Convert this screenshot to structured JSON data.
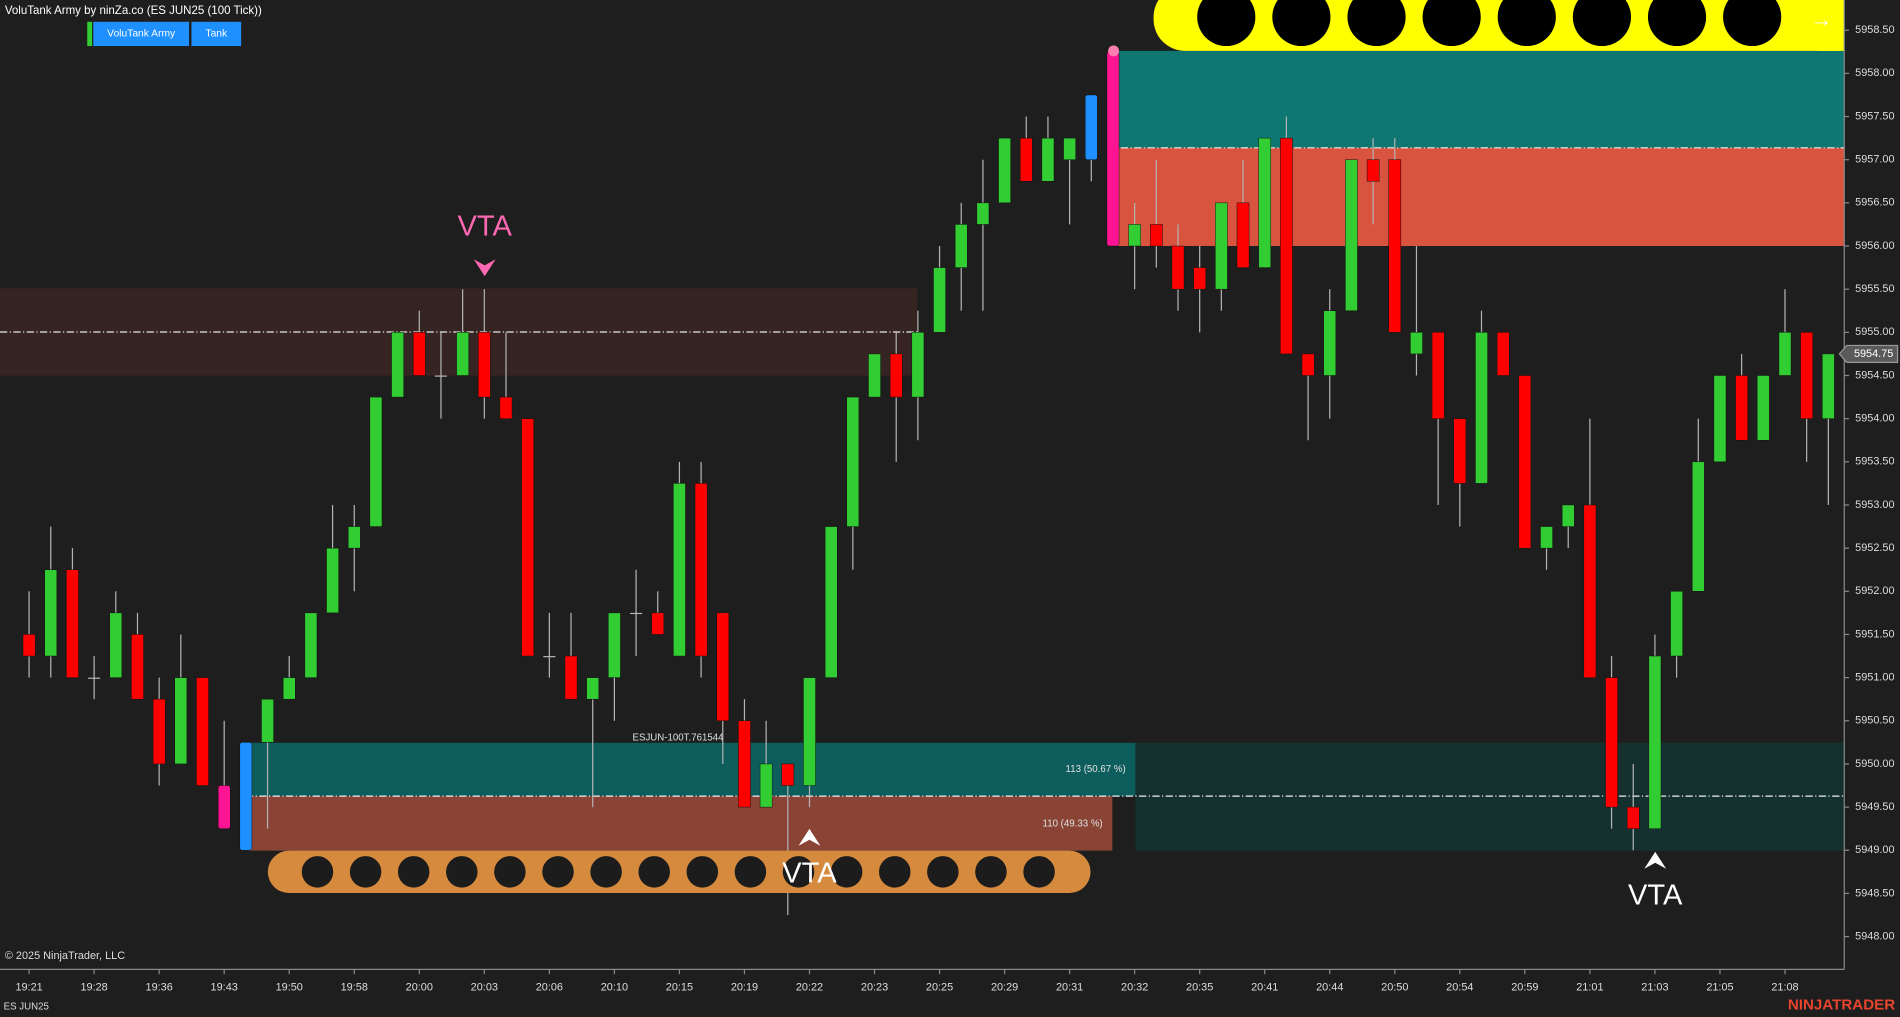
{
  "chart_data": {
    "type": "candlestick",
    "title": "VoluTank Army by ninZa.co (ES JUN25 (100 Tick))",
    "instrument": "ES JUN25",
    "up_color": "#32cd32",
    "down_color": "#ff0000",
    "wick_color": "#b4b4b4",
    "bar_colors": [
      null,
      null,
      null,
      null,
      null,
      null,
      null,
      null,
      null,
      "#ff1493",
      "#1e90ff",
      null,
      null,
      null,
      null,
      null,
      null,
      null,
      null,
      null,
      null,
      null,
      null,
      null,
      null,
      null,
      null,
      null,
      null,
      null,
      null,
      null,
      null,
      null,
      null,
      null,
      null,
      null,
      null,
      null,
      null,
      null,
      null,
      null,
      null,
      null,
      null,
      null,
      null,
      "#1e90ff",
      "#ff1493",
      null,
      null,
      null,
      null,
      null,
      null,
      null,
      null,
      null,
      null,
      null,
      null,
      null,
      null,
      null,
      null,
      null,
      null,
      null,
      null,
      null,
      null,
      null,
      null,
      null,
      null,
      null,
      null,
      null,
      null,
      null,
      null,
      null
    ],
    "categories": [
      "19:21",
      null,
      null,
      "19:28",
      null,
      null,
      "19:36",
      null,
      null,
      "19:43",
      null,
      null,
      "19:50",
      null,
      null,
      "19:58",
      null,
      null,
      "20:00",
      null,
      null,
      "20:03",
      null,
      null,
      "20:06",
      null,
      null,
      "20:10",
      null,
      null,
      "20:15",
      null,
      null,
      "20:19",
      null,
      null,
      "20:22",
      null,
      null,
      "20:23",
      null,
      null,
      "20:25",
      null,
      null,
      "20:29",
      null,
      null,
      "20:31",
      null,
      null,
      "20:32",
      null,
      null,
      "20:35",
      null,
      null,
      "20:41",
      null,
      null,
      "20:44",
      null,
      null,
      "20:50",
      null,
      null,
      "20:54",
      null,
      null,
      "20:59",
      null,
      null,
      "21:01",
      null,
      null,
      "21:03",
      null,
      null,
      "21:05",
      null,
      null,
      "21:08",
      null,
      null
    ],
    "open": [
      5951.5,
      5951.25,
      5952.25,
      5951,
      5951,
      5951.5,
      5950.75,
      5950,
      5951,
      5949.75,
      5949,
      5950.25,
      5950.75,
      5951,
      5951.75,
      5952.5,
      5952.75,
      5954.25,
      5955,
      5954.5,
      5954.5,
      5955,
      5954.25,
      5954,
      5951.25,
      5951.25,
      5950.75,
      5951,
      5951.75,
      5951.75,
      5951.25,
      5953.25,
      5951.75,
      5950.5,
      5949.5,
      5950,
      5949.75,
      5951,
      5952.75,
      5954.25,
      5954.75,
      5954.25,
      5955,
      5955.75,
      5956.25,
      5956.5,
      5957.25,
      5956.75,
      5957,
      5957,
      5958.25,
      5956,
      5956.25,
      5956,
      5955.75,
      5955.5,
      5956.5,
      5955.75,
      5957.25,
      5954.75,
      5954.5,
      5955.25,
      5957,
      5957,
      5954.75,
      5955,
      5954,
      5953.25,
      5955,
      5954.5,
      5952.5,
      5952.75,
      5953,
      5951,
      5949.5,
      5949.25,
      5951.25,
      5952,
      5953.5,
      5954.5,
      5953.75,
      5954.5,
      5955,
      5954
    ],
    "high": [
      5952,
      5952.75,
      5952.5,
      5951.25,
      5952,
      5951.75,
      5951,
      5951.5,
      5951,
      5950.5,
      5950.25,
      5950.75,
      5951.25,
      5951.75,
      5953,
      5953,
      5954.25,
      5955,
      5955.25,
      5955,
      5955.5,
      5955.5,
      5955,
      5954,
      5951.75,
      5951.75,
      5951,
      5951.75,
      5952.25,
      5952,
      5953.5,
      5953.5,
      5951.75,
      5950.75,
      5950.5,
      5950,
      5951,
      5952.75,
      5954.25,
      5954.75,
      5955,
      5955.25,
      5956,
      5956.5,
      5957,
      5957.25,
      5957.5,
      5957.5,
      5957.25,
      5957.75,
      5958.25,
      5956.5,
      5957,
      5956.25,
      5956,
      5956.5,
      5957,
      5957.25,
      5957.5,
      5954.75,
      5955.5,
      5957,
      5957.25,
      5957.25,
      5956,
      5955,
      5954,
      5955.25,
      5955,
      5954.5,
      5952.75,
      5953,
      5954,
      5951.25,
      5950,
      5951.5,
      5952,
      5954,
      5954.5,
      5954.75,
      5954.5,
      5955.5,
      5955,
      5954.75
    ],
    "low": [
      5951,
      5951,
      5951,
      5950.75,
      5951,
      5950.75,
      5949.75,
      5950,
      5949.75,
      5949.25,
      5949,
      5949.25,
      5950.75,
      5951,
      5951.75,
      5952,
      5952.75,
      5954.25,
      5954.5,
      5954,
      5954.5,
      5954,
      5954,
      5951.25,
      5951,
      5950.75,
      5949.5,
      5950.5,
      5951.25,
      5951.5,
      5951.25,
      5951,
      5950,
      5949.5,
      5949.5,
      5948.25,
      5949.5,
      5951,
      5952.25,
      5954.25,
      5953.5,
      5953.75,
      5955,
      5955.25,
      5955.25,
      5956.5,
      5956.75,
      5956.75,
      5956.25,
      5956.75,
      5956,
      5955.5,
      5955.75,
      5955.25,
      5955,
      5955.25,
      5955.75,
      5955.75,
      5954.75,
      5953.75,
      5954,
      5955.25,
      5956.25,
      5955,
      5954.5,
      5953,
      5952.75,
      5953.25,
      5954.5,
      5952.5,
      5952.25,
      5952.5,
      5951,
      5949.25,
      5949,
      5949.25,
      5951,
      5952,
      5953.5,
      5953.75,
      5953.75,
      5954.5,
      5953.5,
      5953
    ],
    "close": [
      5951.25,
      5952.25,
      5951,
      5951,
      5951.75,
      5950.75,
      5950,
      5951,
      5949.75,
      5949.25,
      5950.25,
      5950.75,
      5951,
      5951.75,
      5952.5,
      5952.75,
      5954.25,
      5955,
      5954.5,
      5954.5,
      5955,
      5954.25,
      5954,
      5951.25,
      5951.25,
      5950.75,
      5951,
      5951.75,
      5951.75,
      5951.5,
      5953.25,
      5951.25,
      5950.5,
      5949.5,
      5950,
      5949.75,
      5951,
      5952.75,
      5954.25,
      5954.75,
      5954.25,
      5955,
      5955.75,
      5956.25,
      5956.5,
      5957.25,
      5956.75,
      5957.25,
      5957.25,
      5957.75,
      5956,
      5956.25,
      5956,
      5955.5,
      5955.5,
      5956.5,
      5955.75,
      5957.25,
      5954.75,
      5954.5,
      5955.25,
      5957,
      5956.75,
      5955,
      5955,
      5954,
      5953.25,
      5955,
      5954.5,
      5952.5,
      5952.75,
      5953,
      5951,
      5949.5,
      5949.25,
      5951.25,
      5952,
      5953.5,
      5954.5,
      5953.75,
      5954.5,
      5955,
      5954,
      5954.75
    ],
    "last_price": 5954.75,
    "ylim": [
      5947.62,
      5958.85
    ],
    "yticks": [
      {
        "value": 5948,
        "label": "5948.00"
      },
      {
        "value": 5948.5,
        "label": "5948.50"
      },
      {
        "value": 5949,
        "label": "5949.00"
      },
      {
        "value": 5949.5,
        "label": "5949.50"
      },
      {
        "value": 5950,
        "label": "5950.00"
      },
      {
        "value": 5950.5,
        "label": "5950.50"
      },
      {
        "value": 5951,
        "label": "5951.00"
      },
      {
        "value": 5951.5,
        "label": "5951.50"
      },
      {
        "value": 5952,
        "label": "5952.00"
      },
      {
        "value": 5952.5,
        "label": "5952.50"
      },
      {
        "value": 5953,
        "label": "5953.00"
      },
      {
        "value": 5953.5,
        "label": "5953.50"
      },
      {
        "value": 5954,
        "label": "5954.00"
      },
      {
        "value": 5954.5,
        "label": "5954.50"
      },
      {
        "value": 5955,
        "label": "5955.00"
      },
      {
        "value": 5955.5,
        "label": "5955.50"
      },
      {
        "value": 5956,
        "label": "5956.00"
      },
      {
        "value": 5956.5,
        "label": "5956.50"
      },
      {
        "value": 5957,
        "label": "5957.00"
      },
      {
        "value": 5957.5,
        "label": "5957.50"
      },
      {
        "value": 5958,
        "label": "5958.00"
      },
      {
        "value": 5958.5,
        "label": "5958.50"
      }
    ],
    "grid": false
  },
  "ui": {
    "buttons": [
      "VoluTank Army",
      "Tank"
    ],
    "vta_labels": [
      "VTA",
      "VTA",
      "VTA"
    ],
    "zone_label": "ESJUN-100T.761544",
    "zone_buy": "113 (50.67 %)",
    "zone_sell": "110 (49.33 %)",
    "copyright": "© 2025 NinjaTrader, LLC",
    "brand": "NINJATRADER",
    "arrow": "→"
  }
}
